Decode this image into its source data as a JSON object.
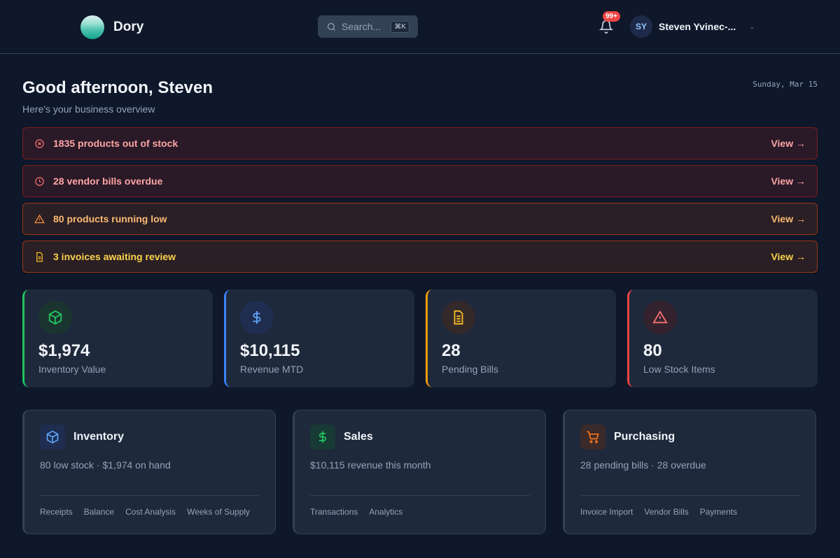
{
  "header": {
    "app_name": "Dory",
    "search_placeholder": "Search...",
    "search_shortcut": "⌘K",
    "notification_count": "99+",
    "user_initials": "SY",
    "user_name": "Steven Yvinec-..."
  },
  "greeting": {
    "title": "Good afternoon, Steven",
    "subtitle": "Here's your business overview",
    "date": "Sunday, Mar 15"
  },
  "alerts": [
    {
      "text": "1835 products out of stock",
      "action": "View →",
      "icon": "x-circle-icon"
    },
    {
      "text": "28 vendor bills overdue",
      "action": "View →",
      "icon": "clock-icon"
    },
    {
      "text": "80 products running low",
      "action": "View →",
      "icon": "warning-icon"
    },
    {
      "text": "3 invoices awaiting review",
      "action": "View →",
      "icon": "document-icon"
    }
  ],
  "stats": [
    {
      "value": "$1,974",
      "label": "Inventory Value",
      "color": "#22c55e"
    },
    {
      "value": "$10,115",
      "label": "Revenue MTD",
      "color": "#3b82f6"
    },
    {
      "value": "28",
      "label": "Pending Bills",
      "color": "#f59e0b"
    },
    {
      "value": "80",
      "label": "Low Stock Items",
      "color": "#ef4444"
    }
  ],
  "modules": [
    {
      "title": "Inventory",
      "description": "80 low stock · $1,974 on hand",
      "links": [
        "Receipts",
        "Balance",
        "Cost Analysis",
        "Weeks of Supply"
      ]
    },
    {
      "title": "Sales",
      "description": "$10,115 revenue this month",
      "links": [
        "Transactions",
        "Analytics"
      ]
    },
    {
      "title": "Purchasing",
      "description": "28 pending bills · 28 overdue",
      "links": [
        "Invoice Import",
        "Vendor Bills",
        "Payments"
      ]
    }
  ]
}
